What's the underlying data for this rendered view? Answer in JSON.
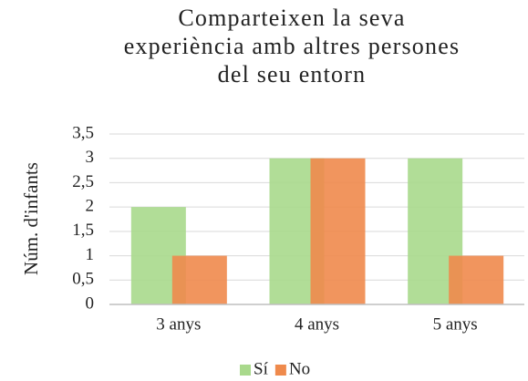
{
  "chart_data": {
    "type": "bar",
    "title": "Comparteixen la seva\nexperiència amb altres persones\ndel seu entorn",
    "y_label": "Núm. d'infants",
    "categories": [
      "3 anys",
      "4 anys",
      "5 anys"
    ],
    "series": [
      {
        "name": "Sí",
        "color": "#a9d98c",
        "values": [
          2,
          3,
          3
        ]
      },
      {
        "name": "No",
        "color": "#ef8a4c",
        "values": [
          1,
          3,
          1
        ]
      }
    ],
    "ylim": [
      0,
      3.5
    ],
    "yticks": [
      0,
      {
        "value": 0.5,
        "label": "0,5"
      },
      1,
      {
        "value": 1.5,
        "label": "1,5"
      },
      2,
      {
        "value": 2.5,
        "label": "2,5"
      },
      3,
      {
        "value": 3.5,
        "label": "3,5"
      }
    ],
    "grid": true,
    "legend": "bottom"
  }
}
